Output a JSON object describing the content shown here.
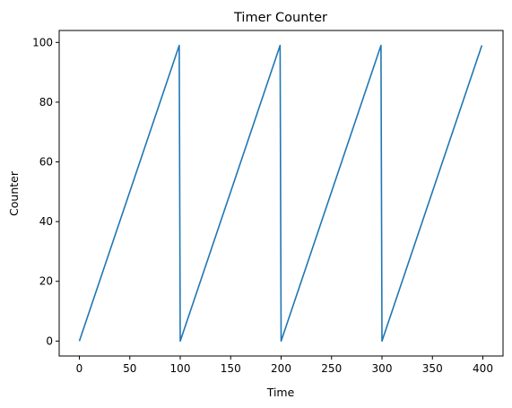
{
  "chart_data": {
    "type": "line",
    "title": "Timer Counter",
    "xlabel": "Time",
    "ylabel": "Counter",
    "xlim": [
      -20,
      420
    ],
    "ylim": [
      -5,
      104
    ],
    "xticks": [
      0,
      50,
      100,
      150,
      200,
      250,
      300,
      350,
      400
    ],
    "yticks": [
      0,
      20,
      40,
      60,
      80,
      100
    ],
    "grid": false,
    "legend": "none",
    "series": [
      {
        "color": "#1f77b4",
        "x": [
          0,
          99,
          100,
          199,
          200,
          299,
          300,
          399
        ],
        "y": [
          0,
          99,
          0,
          99,
          0,
          99,
          0,
          99
        ]
      }
    ]
  }
}
